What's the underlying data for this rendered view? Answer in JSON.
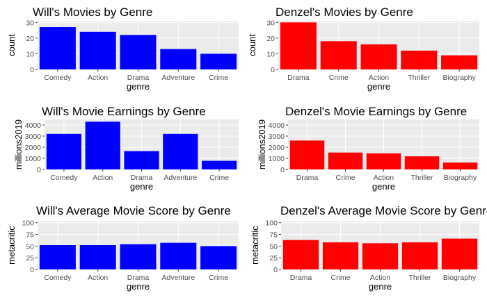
{
  "colors": {
    "will": "#0000FF",
    "denzel": "#FF0000",
    "panel_bg": "#EBEBEB",
    "grid_major": "#FFFFFF",
    "grid_minor": "#F4F4F4"
  },
  "chart_data": [
    {
      "type": "bar",
      "title": "Will's Movies by Genre",
      "xlabel": "genre",
      "ylabel": "count",
      "categories": [
        "Comedy",
        "Action",
        "Drama",
        "Adventure",
        "Crime"
      ],
      "values": [
        27,
        24,
        22,
        13,
        10
      ],
      "ylim": [
        0,
        31
      ],
      "yticks": [
        0,
        10,
        20,
        30
      ],
      "color": "#0000FF",
      "grid": true
    },
    {
      "type": "bar",
      "title": "Denzel's Movies by Genre",
      "xlabel": "genre",
      "ylabel": "count",
      "categories": [
        "Drama",
        "Crime",
        "Action",
        "Thriller",
        "Biography"
      ],
      "values": [
        30,
        18,
        16,
        12,
        9
      ],
      "ylim": [
        0,
        31
      ],
      "yticks": [
        0,
        10,
        20,
        30
      ],
      "color": "#FF0000",
      "grid": true
    },
    {
      "type": "bar",
      "title": "Will's Movie Earnings by Genre",
      "xlabel": "genre",
      "ylabel": "millions2019",
      "categories": [
        "Comedy",
        "Action",
        "Drama",
        "Adventure",
        "Crime"
      ],
      "values": [
        3200,
        4300,
        1650,
        3200,
        780
      ],
      "ylim": [
        0,
        4500
      ],
      "yticks": [
        0,
        1000,
        2000,
        3000,
        4000
      ],
      "color": "#0000FF",
      "grid": true
    },
    {
      "type": "bar",
      "title": "Denzel's Movie Earnings by Genre",
      "xlabel": "genre",
      "ylabel": "millions2019",
      "categories": [
        "Drama",
        "Crime",
        "Action",
        "Thriller",
        "Biography"
      ],
      "values": [
        2600,
        1520,
        1450,
        1180,
        620
      ],
      "ylim": [
        0,
        4500
      ],
      "yticks": [
        0,
        1000,
        2000,
        3000,
        4000
      ],
      "color": "#FF0000",
      "grid": true
    },
    {
      "type": "bar",
      "title": "Will's Average Movie Score by Genre",
      "xlabel": "genre",
      "ylabel": "metacritic",
      "categories": [
        "Comedy",
        "Action",
        "Drama",
        "Adventure",
        "Crime"
      ],
      "values": [
        52,
        52,
        54,
        57,
        50
      ],
      "ylim": [
        0,
        104
      ],
      "yticks": [
        0,
        25,
        50,
        75,
        100
      ],
      "color": "#0000FF",
      "grid": true
    },
    {
      "type": "bar",
      "title": "Denzel's Average Movie Score by Genre",
      "xlabel": "genre",
      "ylabel": "metacritic",
      "categories": [
        "Drama",
        "Crime",
        "Action",
        "Thriller",
        "Biography"
      ],
      "values": [
        63,
        58,
        56,
        58,
        66
      ],
      "ylim": [
        0,
        104
      ],
      "yticks": [
        0,
        25,
        50,
        75,
        100
      ],
      "color": "#FF0000",
      "grid": true
    }
  ]
}
